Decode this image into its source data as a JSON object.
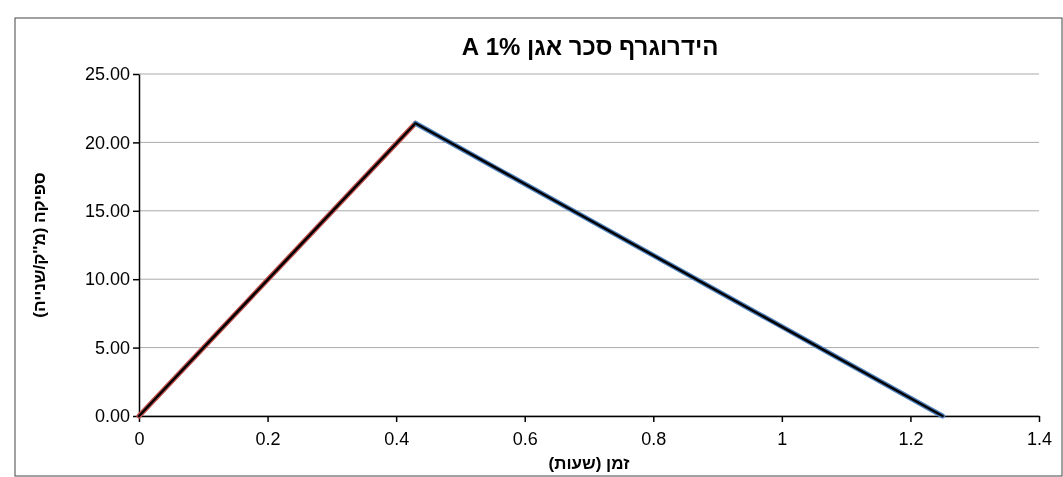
{
  "chart_data": {
    "type": "line",
    "title": "הידרוגרף סכר אגן 1% A",
    "xlabel": "זמן (שעות)",
    "ylabel": "ספיקה (מ''ק/שנייה)",
    "series": [
      {
        "color": "#c0504d",
        "x": [
          0,
          0.43
        ],
        "values": [
          0,
          21.4
        ]
      },
      {
        "color": "#4f81bd",
        "x": [
          0.43,
          1.25
        ],
        "values": [
          21.4,
          0
        ]
      },
      {
        "color": "#000000",
        "x": [
          0,
          0.43,
          1.25
        ],
        "values": [
          0,
          21.4,
          0
        ]
      }
    ],
    "xlim": [
      0,
      1.4
    ],
    "xticks": [
      0,
      0.2,
      0.4,
      0.6,
      0.8,
      1,
      1.2,
      1.4
    ],
    "ylim": [
      0,
      25
    ],
    "yticks": [
      {
        "value": 0,
        "label": "0.00"
      },
      {
        "value": 5,
        "label": "5.00"
      },
      {
        "value": 10,
        "label": "10.00"
      },
      {
        "value": 15,
        "label": "15.00"
      },
      {
        "value": 20,
        "label": "20.00"
      },
      {
        "value": 25,
        "label": "25.00"
      }
    ],
    "grid": "y",
    "marker": "none",
    "line_style": "solid"
  }
}
